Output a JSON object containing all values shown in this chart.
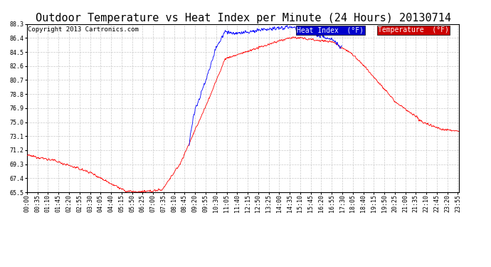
{
  "title": "Outdoor Temperature vs Heat Index per Minute (24 Hours) 20130714",
  "copyright": "Copyright 2013 Cartronics.com",
  "heat_index_label": "Heat Index  (°F)",
  "temperature_label": "Temperature  (°F)",
  "heat_index_color": "#0000ff",
  "temperature_color": "#ff0000",
  "legend_heat_bg": "#0000cc",
  "legend_temp_bg": "#cc0000",
  "background_color": "#ffffff",
  "grid_color": "#bbbbbb",
  "yticks": [
    65.5,
    67.4,
    69.3,
    71.2,
    73.1,
    75.0,
    76.9,
    78.8,
    80.7,
    82.6,
    84.5,
    86.4,
    88.3
  ],
  "ylim": [
    65.5,
    88.3
  ],
  "n_minutes": 1440,
  "title_fontsize": 11,
  "copyright_fontsize": 6.5,
  "legend_fontsize": 7,
  "tick_fontsize": 6
}
